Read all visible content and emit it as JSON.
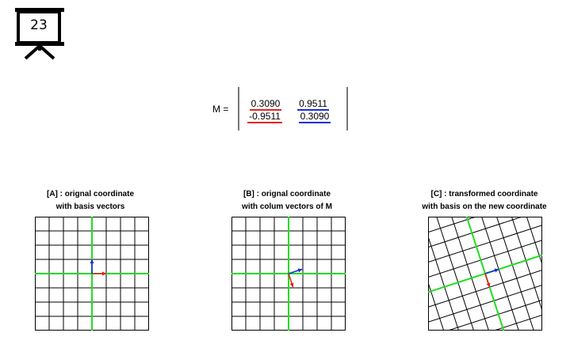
{
  "slide_number": "23",
  "matrix": {
    "label": "M =",
    "rows": [
      [
        "0.3090",
        "0.9511"
      ],
      [
        "-0.9511",
        "0.3090"
      ]
    ],
    "column_colors": [
      "#e52222",
      "#1d2ed8"
    ]
  },
  "panels": [
    {
      "caption_line1": "[A] : orignal coordinate",
      "caption_line2": "with basis vectors"
    },
    {
      "caption_line1": "[B] : orignal coordinate",
      "caption_line2": "with colum vectors of M"
    },
    {
      "caption_line1": "[C] : transformed coordinate",
      "caption_line2": "with basis on the new coordinate"
    }
  ],
  "colors": {
    "axis": "#22dd22",
    "grid": "#000000",
    "vec1": "#e52222",
    "vec2": "#1d2ed8"
  }
}
